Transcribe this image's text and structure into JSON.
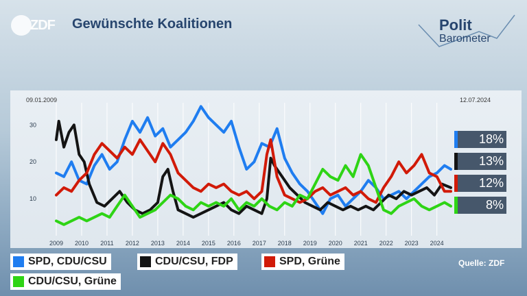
{
  "header": {
    "title": "Gewünschte Koalitionen",
    "logo_text": "ZDF",
    "brand_line1": "Polit",
    "brand_line2": "Barometer"
  },
  "source": "Quelle: ZDF",
  "colors": {
    "spd_cdu": "#1f7df0",
    "cdu_fdp": "#141414",
    "spd_gruene": "#d11a08",
    "cdu_gruene": "#2ed415"
  },
  "chart_data": {
    "type": "line",
    "title": "Gewünschte Koalitionen",
    "start_label": "09.01.2009",
    "end_label": "12.07.2024",
    "x_ticks": [
      "2009",
      "2010",
      "2011",
      "2012",
      "2013",
      "2014",
      "2015",
      "2016",
      "2017",
      "2018",
      "2019",
      "2020",
      "2021",
      "2022",
      "2023",
      "2024"
    ],
    "y_ticks": [
      10,
      20,
      30
    ],
    "ylim": [
      0,
      36
    ],
    "xlim": [
      2009.0,
      2024.55
    ],
    "grid": "vertical",
    "legend": "bottom",
    "series": [
      {
        "name": "SPD, CDU/CSU",
        "color": "#1f7df0",
        "label": "18%",
        "points": [
          [
            2009.0,
            17
          ],
          [
            2009.3,
            16
          ],
          [
            2009.6,
            20
          ],
          [
            2009.9,
            15
          ],
          [
            2010.2,
            14
          ],
          [
            2010.5,
            19
          ],
          [
            2010.8,
            22
          ],
          [
            2011.1,
            18
          ],
          [
            2011.4,
            20
          ],
          [
            2011.7,
            26
          ],
          [
            2012.0,
            31
          ],
          [
            2012.3,
            28
          ],
          [
            2012.6,
            32
          ],
          [
            2012.9,
            27
          ],
          [
            2013.2,
            29
          ],
          [
            2013.5,
            24
          ],
          [
            2013.8,
            26
          ],
          [
            2014.1,
            28
          ],
          [
            2014.4,
            31
          ],
          [
            2014.7,
            35
          ],
          [
            2015.0,
            32
          ],
          [
            2015.3,
            30
          ],
          [
            2015.6,
            28
          ],
          [
            2015.9,
            31
          ],
          [
            2016.2,
            24
          ],
          [
            2016.5,
            18
          ],
          [
            2016.8,
            20
          ],
          [
            2017.1,
            25
          ],
          [
            2017.4,
            24
          ],
          [
            2017.7,
            29
          ],
          [
            2018.0,
            21
          ],
          [
            2018.3,
            17
          ],
          [
            2018.6,
            14
          ],
          [
            2018.9,
            12
          ],
          [
            2019.2,
            9
          ],
          [
            2019.5,
            6
          ],
          [
            2019.8,
            10
          ],
          [
            2020.1,
            11
          ],
          [
            2020.4,
            8
          ],
          [
            2020.7,
            10
          ],
          [
            2021.0,
            12
          ],
          [
            2021.3,
            15
          ],
          [
            2021.6,
            13
          ],
          [
            2021.9,
            10
          ],
          [
            2022.2,
            11
          ],
          [
            2022.5,
            12
          ],
          [
            2022.8,
            10
          ],
          [
            2023.1,
            12
          ],
          [
            2023.4,
            14
          ],
          [
            2023.7,
            16
          ],
          [
            2024.0,
            17
          ],
          [
            2024.3,
            19
          ],
          [
            2024.55,
            18
          ]
        ]
      },
      {
        "name": "CDU/CSU, FDP",
        "color": "#141414",
        "label": "13%",
        "points": [
          [
            2009.0,
            26
          ],
          [
            2009.1,
            31
          ],
          [
            2009.3,
            24
          ],
          [
            2009.5,
            28
          ],
          [
            2009.7,
            30
          ],
          [
            2009.9,
            22
          ],
          [
            2010.1,
            20
          ],
          [
            2010.3,
            14
          ],
          [
            2010.6,
            9
          ],
          [
            2010.9,
            8
          ],
          [
            2011.2,
            10
          ],
          [
            2011.5,
            12
          ],
          [
            2011.8,
            9
          ],
          [
            2012.1,
            7
          ],
          [
            2012.4,
            6
          ],
          [
            2012.7,
            7
          ],
          [
            2013.0,
            9
          ],
          [
            2013.2,
            16
          ],
          [
            2013.4,
            18
          ],
          [
            2013.6,
            12
          ],
          [
            2013.8,
            7
          ],
          [
            2014.1,
            6
          ],
          [
            2014.4,
            5
          ],
          [
            2014.7,
            6
          ],
          [
            2015.0,
            7
          ],
          [
            2015.3,
            8
          ],
          [
            2015.6,
            9
          ],
          [
            2015.9,
            7
          ],
          [
            2016.2,
            6
          ],
          [
            2016.5,
            8
          ],
          [
            2016.8,
            7
          ],
          [
            2017.1,
            6
          ],
          [
            2017.3,
            10
          ],
          [
            2017.45,
            21
          ],
          [
            2017.6,
            19
          ],
          [
            2017.9,
            16
          ],
          [
            2018.2,
            13
          ],
          [
            2018.5,
            11
          ],
          [
            2018.8,
            9
          ],
          [
            2019.1,
            8
          ],
          [
            2019.4,
            7
          ],
          [
            2019.7,
            9
          ],
          [
            2020.0,
            8
          ],
          [
            2020.3,
            7
          ],
          [
            2020.6,
            8
          ],
          [
            2020.9,
            7
          ],
          [
            2021.2,
            8
          ],
          [
            2021.5,
            7
          ],
          [
            2021.8,
            9
          ],
          [
            2022.1,
            11
          ],
          [
            2022.4,
            10
          ],
          [
            2022.7,
            12
          ],
          [
            2023.0,
            11
          ],
          [
            2023.3,
            12
          ],
          [
            2023.6,
            13
          ],
          [
            2023.9,
            11
          ],
          [
            2024.2,
            14
          ],
          [
            2024.55,
            13
          ]
        ]
      },
      {
        "name": "SPD, Grüne",
        "color": "#d11a08",
        "label": "12%",
        "points": [
          [
            2009.0,
            11
          ],
          [
            2009.3,
            13
          ],
          [
            2009.6,
            12
          ],
          [
            2009.9,
            15
          ],
          [
            2010.2,
            17
          ],
          [
            2010.5,
            22
          ],
          [
            2010.8,
            25
          ],
          [
            2011.1,
            23
          ],
          [
            2011.4,
            21
          ],
          [
            2011.7,
            24
          ],
          [
            2012.0,
            22
          ],
          [
            2012.3,
            26
          ],
          [
            2012.6,
            23
          ],
          [
            2012.9,
            20
          ],
          [
            2013.2,
            25
          ],
          [
            2013.5,
            22
          ],
          [
            2013.8,
            17
          ],
          [
            2014.1,
            15
          ],
          [
            2014.4,
            13
          ],
          [
            2014.7,
            12
          ],
          [
            2015.0,
            14
          ],
          [
            2015.3,
            13
          ],
          [
            2015.6,
            14
          ],
          [
            2015.9,
            12
          ],
          [
            2016.2,
            11
          ],
          [
            2016.5,
            12
          ],
          [
            2016.8,
            10
          ],
          [
            2017.1,
            12
          ],
          [
            2017.3,
            22
          ],
          [
            2017.45,
            26
          ],
          [
            2017.7,
            16
          ],
          [
            2018.0,
            11
          ],
          [
            2018.3,
            10
          ],
          [
            2018.6,
            9
          ],
          [
            2018.9,
            10
          ],
          [
            2019.2,
            12
          ],
          [
            2019.5,
            13
          ],
          [
            2019.8,
            11
          ],
          [
            2020.1,
            12
          ],
          [
            2020.4,
            13
          ],
          [
            2020.7,
            11
          ],
          [
            2021.0,
            12
          ],
          [
            2021.3,
            10
          ],
          [
            2021.6,
            9
          ],
          [
            2021.9,
            13
          ],
          [
            2022.2,
            16
          ],
          [
            2022.5,
            20
          ],
          [
            2022.8,
            17
          ],
          [
            2023.1,
            19
          ],
          [
            2023.4,
            22
          ],
          [
            2023.7,
            17
          ],
          [
            2024.0,
            16
          ],
          [
            2024.3,
            12
          ],
          [
            2024.55,
            12
          ]
        ]
      },
      {
        "name": "CDU/CSU, Grüne",
        "color": "#2ed415",
        "label": "8%",
        "points": [
          [
            2009.0,
            4
          ],
          [
            2009.3,
            3
          ],
          [
            2009.6,
            4
          ],
          [
            2009.9,
            5
          ],
          [
            2010.2,
            4
          ],
          [
            2010.5,
            5
          ],
          [
            2010.8,
            6
          ],
          [
            2011.1,
            5
          ],
          [
            2011.4,
            8
          ],
          [
            2011.7,
            11
          ],
          [
            2012.0,
            8
          ],
          [
            2012.3,
            5
          ],
          [
            2012.6,
            6
          ],
          [
            2012.9,
            7
          ],
          [
            2013.2,
            9
          ],
          [
            2013.5,
            11
          ],
          [
            2013.8,
            10
          ],
          [
            2014.1,
            8
          ],
          [
            2014.4,
            7
          ],
          [
            2014.7,
            9
          ],
          [
            2015.0,
            8
          ],
          [
            2015.3,
            9
          ],
          [
            2015.6,
            8
          ],
          [
            2015.9,
            10
          ],
          [
            2016.2,
            7
          ],
          [
            2016.5,
            9
          ],
          [
            2016.8,
            8
          ],
          [
            2017.1,
            10
          ],
          [
            2017.4,
            8
          ],
          [
            2017.7,
            7
          ],
          [
            2018.0,
            9
          ],
          [
            2018.3,
            8
          ],
          [
            2018.6,
            11
          ],
          [
            2018.9,
            10
          ],
          [
            2019.2,
            14
          ],
          [
            2019.5,
            18
          ],
          [
            2019.8,
            16
          ],
          [
            2020.1,
            15
          ],
          [
            2020.4,
            19
          ],
          [
            2020.7,
            16
          ],
          [
            2021.0,
            22
          ],
          [
            2021.3,
            19
          ],
          [
            2021.6,
            13
          ],
          [
            2021.9,
            7
          ],
          [
            2022.2,
            6
          ],
          [
            2022.5,
            8
          ],
          [
            2022.8,
            9
          ],
          [
            2023.1,
            10
          ],
          [
            2023.4,
            8
          ],
          [
            2023.7,
            7
          ],
          [
            2024.0,
            8
          ],
          [
            2024.3,
            9
          ],
          [
            2024.55,
            8
          ]
        ]
      }
    ]
  }
}
